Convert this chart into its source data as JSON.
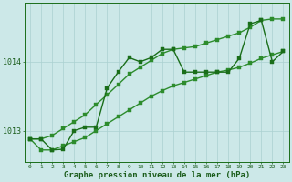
{
  "xlabel": "Graphe pression niveau de la mer (hPa)",
  "x": [
    0,
    1,
    2,
    3,
    4,
    5,
    6,
    7,
    8,
    9,
    10,
    11,
    12,
    13,
    14,
    15,
    16,
    17,
    18,
    19,
    20,
    21,
    22,
    23
  ],
  "y_main": [
    1012.88,
    1012.88,
    1012.72,
    1012.73,
    1013.0,
    1013.05,
    1013.05,
    1013.62,
    1013.85,
    1014.06,
    1014.0,
    1014.06,
    1014.18,
    1014.18,
    1013.85,
    1013.85,
    1013.85,
    1013.85,
    1013.85,
    1014.05,
    1014.55,
    1014.6,
    1014.0,
    1014.15
  ],
  "y_low": [
    1012.88,
    1012.72,
    1012.72,
    1012.78,
    1012.84,
    1012.9,
    1013.0,
    1013.1,
    1013.2,
    1013.3,
    1013.4,
    1013.5,
    1013.58,
    1013.65,
    1013.7,
    1013.75,
    1013.8,
    1013.85,
    1013.88,
    1013.92,
    1013.98,
    1014.05,
    1014.1,
    1014.15
  ],
  "y_high": [
    1012.88,
    1012.88,
    1012.93,
    1013.03,
    1013.13,
    1013.23,
    1013.38,
    1013.52,
    1013.67,
    1013.82,
    1013.92,
    1014.02,
    1014.12,
    1014.18,
    1014.2,
    1014.22,
    1014.27,
    1014.32,
    1014.37,
    1014.42,
    1014.5,
    1014.6,
    1014.62,
    1014.62
  ],
  "color_main": "#1a6e1a",
  "color_bands": "#2d8c2d",
  "bg_color": "#cce8e8",
  "grid_color": "#aad0d0",
  "yticks": [
    1013,
    1014
  ],
  "ylim": [
    1012.55,
    1014.85
  ],
  "xlim": [
    -0.5,
    23.5
  ],
  "xlabel_color": "#1a5c1a",
  "tick_color": "#1a5c1a",
  "markersize": 2.5,
  "linewidth": 1.0
}
